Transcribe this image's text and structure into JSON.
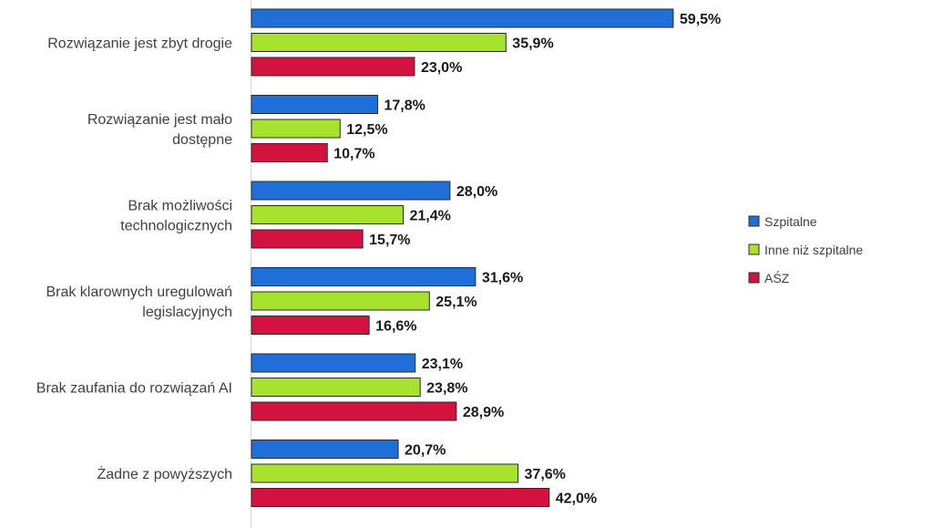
{
  "chart_data": {
    "type": "bar",
    "orientation": "horizontal",
    "categories": [
      "Rozwiązanie jest zbyt drogie",
      "Rozwiązanie jest mało dostępne",
      "Brak możliwości technologicznych",
      "Brak klarownych uregulowań legislacyjnych",
      "Brak zaufania do rozwiązań AI",
      "Żadne z powyższych"
    ],
    "category_lines": [
      [
        "Rozwiązanie jest zbyt drogie"
      ],
      [
        "Rozwiązanie jest mało",
        "dostępne"
      ],
      [
        "Brak możliwości",
        "technologicznych"
      ],
      [
        "Brak klarownych uregulowań",
        "legislacyjnych"
      ],
      [
        "Brak zaufania do rozwiązań AI"
      ],
      [
        "Żadne z powyższych"
      ]
    ],
    "series": [
      {
        "name": "Szpitalne",
        "color": "#1f6fd8",
        "values": [
          59.5,
          17.8,
          28.0,
          31.6,
          23.1,
          20.7
        ],
        "labels": [
          "59,5%",
          "17,8%",
          "28,0%",
          "31,6%",
          "23,1%",
          "20,7%"
        ]
      },
      {
        "name": "Inne niż szpitalne",
        "color": "#a6e22e",
        "values": [
          35.9,
          12.5,
          21.4,
          25.1,
          23.8,
          37.6
        ],
        "labels": [
          "35,9%",
          "12,5%",
          "21,4%",
          "25,1%",
          "23,8%",
          "37,6%"
        ]
      },
      {
        "name": "AŚZ",
        "color": "#d3123f",
        "values": [
          23.0,
          10.7,
          15.7,
          16.6,
          28.9,
          42.0
        ],
        "labels": [
          "23,0%",
          "10,7%",
          "15,7%",
          "16,6%",
          "28,9%",
          "42,0%"
        ]
      }
    ],
    "xlim": [
      0,
      100
    ],
    "grid": false,
    "legend_position": "right"
  }
}
